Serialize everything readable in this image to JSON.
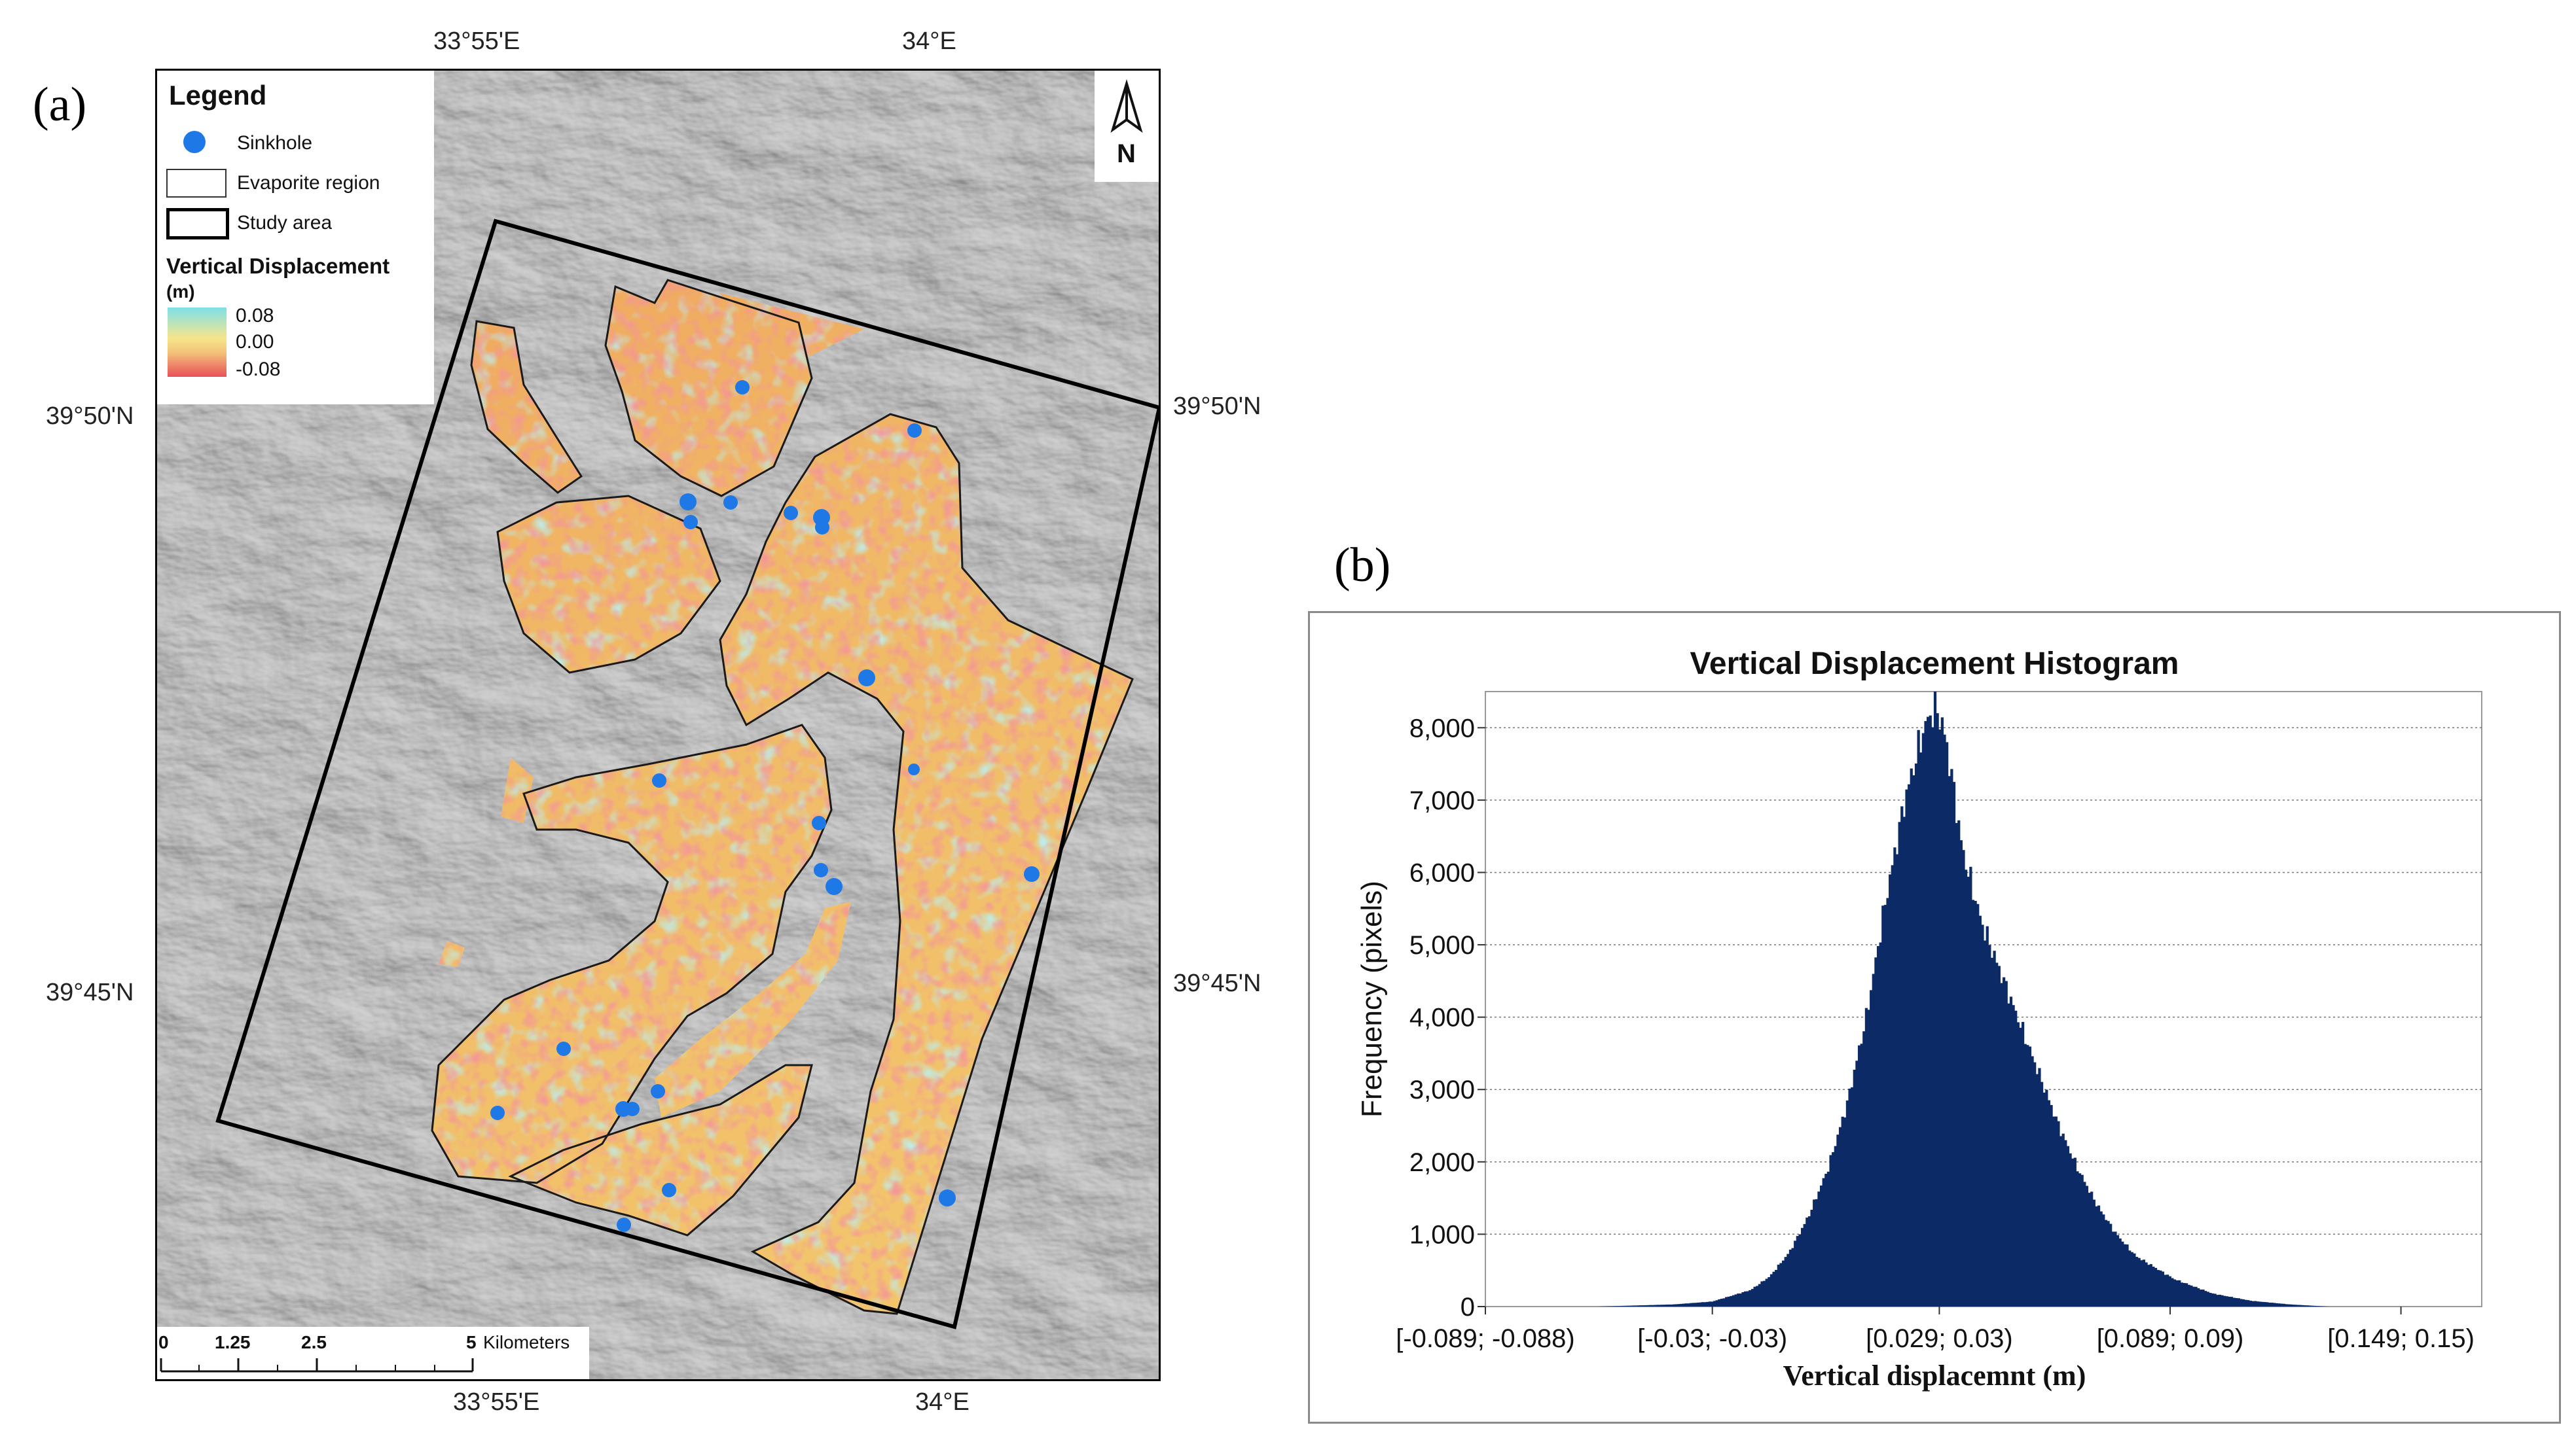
{
  "panel_a_label": "(a)",
  "panel_b_label": "(b)",
  "map": {
    "top_ticks": [
      "33°55'E",
      "34°E"
    ],
    "bottom_ticks": [
      "33°55'E",
      "34°E"
    ],
    "left_ticks": [
      "39°50'N",
      "39°45'N"
    ],
    "right_ticks": [
      "39°50'N",
      "39°45'N"
    ],
    "north_label": "N",
    "legend": {
      "title": "Legend",
      "sinkhole": "Sinkhole",
      "evaporite": "Evaporite region",
      "study_area": "Study area",
      "vd_title": "Vertical Displacement",
      "vd_unit": "(m)",
      "vd_max": "0.08",
      "vd_mid": "0.00",
      "vd_min": "-0.08"
    },
    "scalebar": {
      "ticks": [
        "0",
        "1.25",
        "2.5",
        "5"
      ],
      "unit": "Kilometers"
    },
    "colors": {
      "sinkhole": "#1e78e6",
      "ramp_high": "#7fe0e8",
      "ramp_mid": "#f7e58a",
      "ramp_low": "#e8505a",
      "hillshade": "#9a9a9a"
    }
  },
  "chart_data": {
    "type": "bar",
    "title": "Vertical Displacement Histogram",
    "xlabel": "Vertical displacemnt (m)",
    "ylabel": "Frequency (pixels)",
    "categories": [
      "[-0.089; -0.088)",
      "[-0.03; -0.03)",
      "[0.029; 0.03)",
      "[0.089; 0.09)",
      "[0.149; 0.15)"
    ],
    "yticks": [
      "0",
      "1,000",
      "2,000",
      "3,000",
      "4,000",
      "5,000",
      "6,000",
      "7,000",
      "8,000"
    ],
    "ylim": [
      0,
      8500
    ],
    "xlim": [
      -0.089,
      0.17
    ],
    "grid": true,
    "bar_color": "#0c2a66",
    "x": [
      -0.06,
      -0.04,
      -0.03,
      -0.02,
      -0.015,
      -0.01,
      -0.005,
      0.0,
      0.005,
      0.01,
      0.015,
      0.02,
      0.025,
      0.028,
      0.03,
      0.032,
      0.035,
      0.04,
      0.045,
      0.05,
      0.055,
      0.06,
      0.065,
      0.07,
      0.075,
      0.08,
      0.09,
      0.1,
      0.11,
      0.12,
      0.13
    ],
    "values": [
      0,
      30,
      70,
      230,
      420,
      750,
      1250,
      1900,
      2800,
      4000,
      5600,
      7000,
      8000,
      8300,
      8000,
      7400,
      6300,
      5300,
      4600,
      3900,
      3200,
      2500,
      1900,
      1400,
      1000,
      700,
      380,
      180,
      80,
      30,
      0
    ]
  }
}
